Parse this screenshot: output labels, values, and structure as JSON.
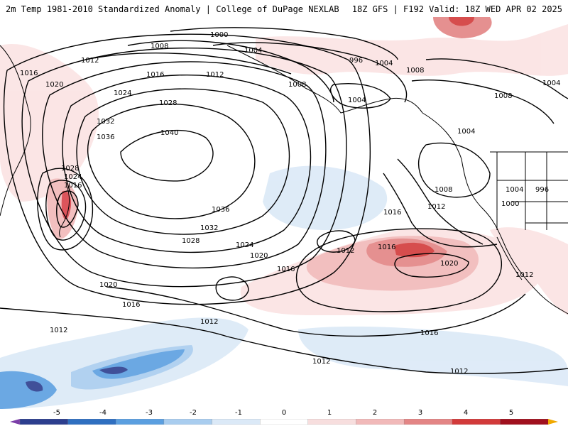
{
  "header": {
    "title": "2m Temp 1981-2010 Standardized Anomaly | College of DuPage NEXLAB",
    "run_info": "18Z GFS | F192 Valid: 18Z WED APR 02 2025"
  },
  "colorbar": {
    "tick_labels": [
      "-5",
      "-4",
      "-3",
      "-2",
      "-1",
      "0",
      "1",
      "2",
      "3",
      "4",
      "5"
    ],
    "segments": [
      {
        "color": "#7b3ea8"
      },
      {
        "color": "#2c3e8e"
      },
      {
        "color": "#2f6fc0"
      },
      {
        "color": "#5b9fe0"
      },
      {
        "color": "#a9cdef"
      },
      {
        "color": "#dbe9f7"
      },
      {
        "color": "#ffffff"
      },
      {
        "color": "#f7dede"
      },
      {
        "color": "#f1b9b9"
      },
      {
        "color": "#e38585"
      },
      {
        "color": "#d23a3a"
      },
      {
        "color": "#a0101e"
      },
      {
        "color": "#f0a800"
      }
    ]
  },
  "isobars": {
    "labels": [
      "1000",
      "1004",
      "1008",
      "1012",
      "1016",
      "1020",
      "1024",
      "1028",
      "1032",
      "1036",
      "1040",
      "996",
      "1004",
      "1008",
      "1012",
      "1016",
      "1020",
      "1024",
      "1028",
      "1036",
      "1032",
      "1028",
      "1024",
      "1020",
      "1016",
      "1012",
      "1016",
      "1012",
      "1020",
      "1016",
      "1012",
      "1016",
      "1012",
      "1012",
      "1008",
      "1004",
      "1008",
      "1008",
      "1004",
      "1004",
      "996",
      "1012",
      "1016",
      "1000",
      "1012",
      "1004",
      "1016"
    ]
  },
  "colors": {
    "positive": "#f3c9c9",
    "positive_strong": "#d9424a",
    "negative": "#cfe0f3",
    "negative_strong": "#3a7ad0",
    "coast": "#000000"
  }
}
